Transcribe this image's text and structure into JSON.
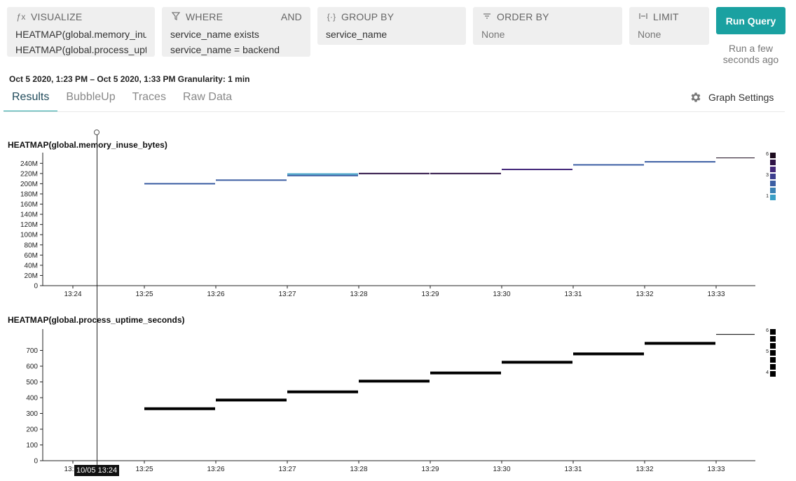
{
  "query": {
    "visualize": {
      "label": "VISUALIZE",
      "icon": "function-icon",
      "lines": [
        "HEATMAP(global.memory_inuse_bytes)",
        "HEATMAP(global.process_uptime_seconds)"
      ]
    },
    "where": {
      "label": "WHERE",
      "icon": "filter-icon",
      "combinator": "AND",
      "lines": [
        "service_name exists",
        "service_name = backend"
      ]
    },
    "group_by": {
      "label": "GROUP BY",
      "icon": "braces-icon",
      "lines": [
        "service_name"
      ]
    },
    "order_by": {
      "label": "ORDER BY",
      "icon": "sort-icon",
      "lines": [
        "None"
      ]
    },
    "limit": {
      "label": "LIMIT",
      "icon": "limit-icon",
      "lines": [
        "None"
      ]
    }
  },
  "run": {
    "label": "Run Query",
    "status": "Run a few seconds ago"
  },
  "time_range": "Oct 5 2020, 1:23 PM – Oct 5 2020, 1:33 PM Granularity: 1 min",
  "tabs": [
    "Results",
    "BubbleUp",
    "Traces",
    "Raw Data"
  ],
  "active_tab": "Results",
  "graph_settings": {
    "label": "Graph Settings",
    "icon": "gear-icon"
  },
  "cursor": {
    "label": "10/05 13:24"
  },
  "colors": {
    "accent": "#1aa1a1",
    "heat_low": "#3a9fc6",
    "heat_mid": "#3d3f8f",
    "heat_high": "#1c0a1e"
  },
  "chart_data": [
    {
      "type": "heatmap",
      "title": "HEATMAP(global.memory_inuse_bytes)",
      "x": [
        "13:24",
        "13:25",
        "13:26",
        "13:27",
        "13:28",
        "13:29",
        "13:30",
        "13:31",
        "13:32",
        "13:33"
      ],
      "ylim": [
        0,
        250000000
      ],
      "yticks": [
        0,
        20000000,
        40000000,
        60000000,
        80000000,
        100000000,
        120000000,
        140000000,
        160000000,
        180000000,
        200000000,
        220000000,
        240000000
      ],
      "ytick_labels": [
        "0",
        "20M",
        "40M",
        "60M",
        "80M",
        "100M",
        "120M",
        "140M",
        "160M",
        "180M",
        "200M",
        "220M",
        "240M"
      ],
      "cells": [
        {
          "start": "13:25",
          "end": "13:26",
          "y": 200000000,
          "count": 3
        },
        {
          "start": "13:26",
          "end": "13:27",
          "y": 207000000,
          "count": 3
        },
        {
          "start": "13:27",
          "end": "13:28",
          "y": 216000000,
          "count": 3
        },
        {
          "start": "13:27",
          "end": "13:28",
          "y": 219000000,
          "count": 1
        },
        {
          "start": "13:28",
          "end": "13:29",
          "y": 220000000,
          "count": 5
        },
        {
          "start": "13:29",
          "end": "13:30",
          "y": 220000000,
          "count": 5
        },
        {
          "start": "13:30",
          "end": "13:31",
          "y": 228000000,
          "count": 4
        },
        {
          "start": "13:31",
          "end": "13:32",
          "y": 237000000,
          "count": 3
        },
        {
          "start": "13:32",
          "end": "13:33",
          "y": 243000000,
          "count": 3
        },
        {
          "start": "13:33",
          "end": "13:34",
          "y": 250000000,
          "count": 6
        }
      ],
      "legend": {
        "min": 1,
        "mid": 3,
        "max": 6,
        "colors": [
          "#3a9fc6",
          "#3b82b4",
          "#3c5ea3",
          "#3d3f8f",
          "#44287a",
          "#2e1246",
          "#1c0a1e"
        ]
      }
    },
    {
      "type": "heatmap",
      "title": "HEATMAP(global.process_uptime_seconds)",
      "x": [
        "13:24",
        "13:25",
        "13:26",
        "13:27",
        "13:28",
        "13:29",
        "13:30",
        "13:31",
        "13:32",
        "13:33"
      ],
      "ylim": [
        0,
        800
      ],
      "yticks": [
        0,
        100,
        200,
        300,
        400,
        500,
        600,
        700
      ],
      "ytick_labels": [
        "0",
        "100",
        "200",
        "300",
        "400",
        "500",
        "600",
        "700"
      ],
      "cells": [
        {
          "start": "13:25",
          "end": "13:26",
          "y": 330,
          "count": 5
        },
        {
          "start": "13:26",
          "end": "13:27",
          "y": 385,
          "count": 5
        },
        {
          "start": "13:27",
          "end": "13:28",
          "y": 437,
          "count": 5
        },
        {
          "start": "13:28",
          "end": "13:29",
          "y": 505,
          "count": 5
        },
        {
          "start": "13:29",
          "end": "13:30",
          "y": 557,
          "count": 5
        },
        {
          "start": "13:30",
          "end": "13:31",
          "y": 625,
          "count": 5
        },
        {
          "start": "13:31",
          "end": "13:32",
          "y": 678,
          "count": 5
        },
        {
          "start": "13:32",
          "end": "13:33",
          "y": 745,
          "count": 5
        },
        {
          "start": "13:33",
          "end": "13:34",
          "y": 795,
          "count": 6
        }
      ],
      "legend": {
        "min": 4,
        "mid": 5,
        "max": 6,
        "colors": [
          "#000000",
          "#000000",
          "#000000",
          "#000000",
          "#000000",
          "#000000",
          "#000000"
        ]
      }
    }
  ]
}
